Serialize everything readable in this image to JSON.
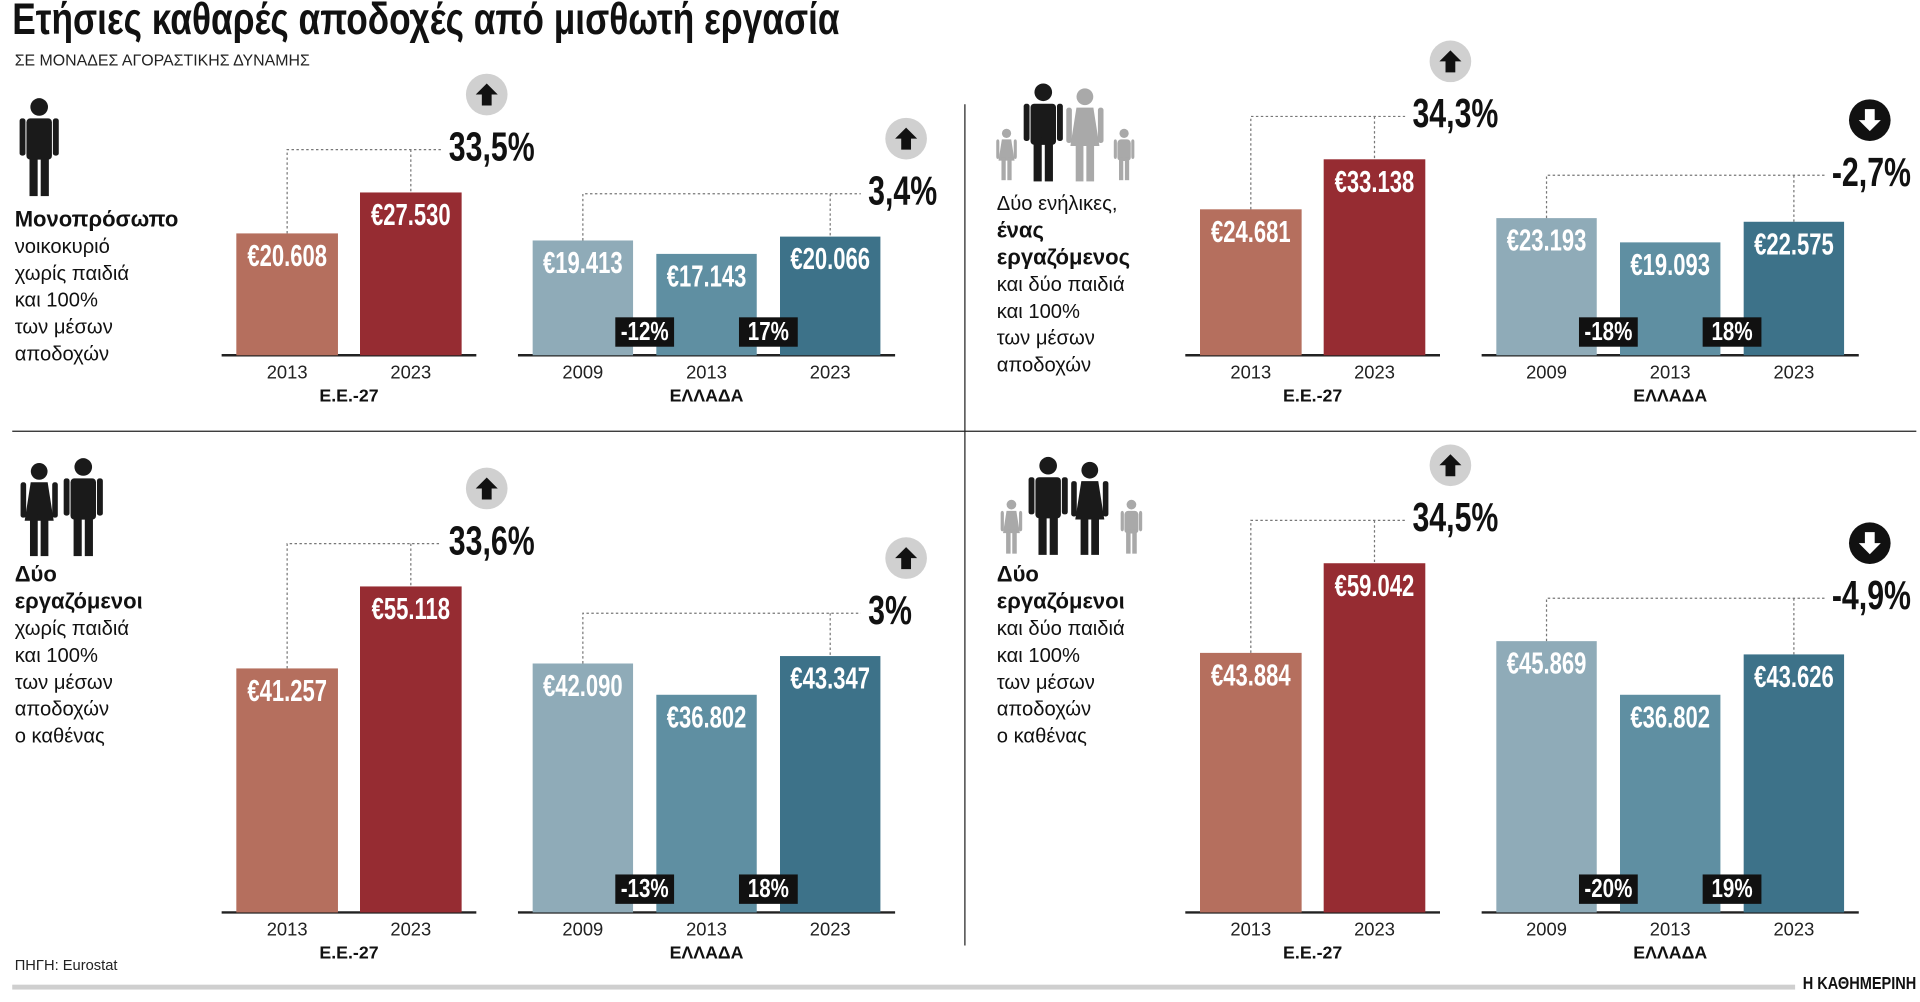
{
  "title": "Ετήσιες καθαρές αποδοχές από μισθωτή εργασία",
  "subtitle": "ΣΕ ΜΟΝΑΔΕΣ ΑΓΟΡΑΣΤΙΚΗΣ ΔΥΝΑΜΗΣ",
  "source": "ΠΗΓΗ: Eurostat",
  "brand": "Η ΚΑΘΗΜΕΡΙΝΗ",
  "panels": [
    {
      "lines": [
        {
          "text": "Μονοπρόσωπο",
          "bold": true
        },
        {
          "text": "νοικοκυριό",
          "bold": false
        },
        {
          "text": "χωρίς παιδιά",
          "bold": false
        },
        {
          "text": "και 100%",
          "bold": false
        },
        {
          "text": "των μέσων",
          "bold": false
        },
        {
          "text": "αποδοχών",
          "bold": false
        }
      ]
    },
    {
      "lines": [
        {
          "text": "Δύο ενήλικες,",
          "bold": false
        },
        {
          "text": "ένας",
          "bold": true
        },
        {
          "text": "εργαζόμενος",
          "bold": true
        },
        {
          "text": "και δύο παιδιά",
          "bold": false
        },
        {
          "text": "και 100%",
          "bold": false
        },
        {
          "text": "των μέσων",
          "bold": false
        },
        {
          "text": "αποδοχών",
          "bold": false
        }
      ]
    },
    {
      "lines": [
        {
          "text": "Δύο",
          "bold": true
        },
        {
          "text": "εργαζόμενοι",
          "bold": true
        },
        {
          "text": "χωρίς παιδιά",
          "bold": false
        },
        {
          "text": "και 100%",
          "bold": false
        },
        {
          "text": "των μέσων",
          "bold": false
        },
        {
          "text": "αποδοχών",
          "bold": false
        },
        {
          "text": "ο καθένας",
          "bold": false
        }
      ]
    },
    {
      "lines": [
        {
          "text": "Δύο",
          "bold": true
        },
        {
          "text": "εργαζόμενοι",
          "bold": true
        },
        {
          "text": "και δύο παιδιά",
          "bold": false
        },
        {
          "text": "και 100%",
          "bold": false
        },
        {
          "text": "των μέσων",
          "bold": false
        },
        {
          "text": "αποδοχών",
          "bold": false
        },
        {
          "text": "ο καθένας",
          "bold": false
        }
      ]
    }
  ],
  "chart_data": [
    {
      "type": "bar",
      "xlabel": "Ε.Ε.-27",
      "categories": [
        "2013",
        "2023"
      ],
      "values": [
        20608,
        27530
      ],
      "value_labels": [
        "€20.608",
        "€27.530"
      ],
      "colors": [
        "#b56f5e",
        "#962c32"
      ],
      "change": {
        "value": 33.5,
        "label": "33,5%"
      }
    },
    {
      "type": "bar",
      "xlabel": "ΕΛΛΑΔΑ",
      "categories": [
        "2009",
        "2013",
        "2023"
      ],
      "values": [
        19413,
        17143,
        20066
      ],
      "value_labels": [
        "€19.413",
        "€17.143",
        "€20.066"
      ],
      "colors": [
        "#8fabb8",
        "#5f8fa2",
        "#3d7289"
      ],
      "change": {
        "value": 3.4,
        "label": "3,4%"
      },
      "step_changes": [
        {
          "value": -12,
          "label": "-12%"
        },
        {
          "value": 17,
          "label": "17%"
        }
      ]
    },
    {
      "type": "bar",
      "xlabel": "Ε.Ε.-27",
      "categories": [
        "2013",
        "2023"
      ],
      "values": [
        24681,
        33138
      ],
      "value_labels": [
        "€24.681",
        "€33.138"
      ],
      "colors": [
        "#b56f5e",
        "#962c32"
      ],
      "change": {
        "value": 34.3,
        "label": "34,3%"
      }
    },
    {
      "type": "bar",
      "xlabel": "ΕΛΛΑΔΑ",
      "categories": [
        "2009",
        "2013",
        "2023"
      ],
      "values": [
        23193,
        19093,
        22575
      ],
      "value_labels": [
        "€23.193",
        "€19.093",
        "€22.575"
      ],
      "colors": [
        "#8fabb8",
        "#5f8fa2",
        "#3d7289"
      ],
      "change": {
        "value": -2.7,
        "label": "-2,7%"
      },
      "step_changes": [
        {
          "value": -18,
          "label": "-18%"
        },
        {
          "value": 18,
          "label": "18%"
        }
      ]
    },
    {
      "type": "bar",
      "xlabel": "Ε.Ε.-27",
      "categories": [
        "2013",
        "2023"
      ],
      "values": [
        41257,
        55118
      ],
      "value_labels": [
        "€41.257",
        "€55.118"
      ],
      "colors": [
        "#b56f5e",
        "#962c32"
      ],
      "change": {
        "value": 33.6,
        "label": "33,6%"
      }
    },
    {
      "type": "bar",
      "xlabel": "ΕΛΛΑΔΑ",
      "categories": [
        "2009",
        "2013",
        "2023"
      ],
      "values": [
        42090,
        36802,
        43347
      ],
      "value_labels": [
        "€42.090",
        "€36.802",
        "€43.347"
      ],
      "colors": [
        "#8fabb8",
        "#5f8fa2",
        "#3d7289"
      ],
      "change": {
        "value": 3,
        "label": "3%"
      },
      "step_changes": [
        {
          "value": -13,
          "label": "-13%"
        },
        {
          "value": 18,
          "label": "18%"
        }
      ]
    },
    {
      "type": "bar",
      "xlabel": "Ε.Ε.-27",
      "categories": [
        "2013",
        "2023"
      ],
      "values": [
        43884,
        59042
      ],
      "value_labels": [
        "€43.884",
        "€59.042"
      ],
      "colors": [
        "#b56f5e",
        "#962c32"
      ],
      "change": {
        "value": 34.5,
        "label": "34,5%"
      }
    },
    {
      "type": "bar",
      "xlabel": "ΕΛΛΑΔΑ",
      "categories": [
        "2009",
        "2013",
        "2023"
      ],
      "values": [
        45869,
        36802,
        43626
      ],
      "value_labels": [
        "€45.869",
        "€36.802",
        "€43.626"
      ],
      "colors": [
        "#8fabb8",
        "#5f8fa2",
        "#3d7289"
      ],
      "change": {
        "value": -4.9,
        "label": "-4,9%"
      },
      "step_changes": [
        {
          "value": -20,
          "label": "-20%"
        },
        {
          "value": 19,
          "label": "19%"
        }
      ]
    }
  ]
}
